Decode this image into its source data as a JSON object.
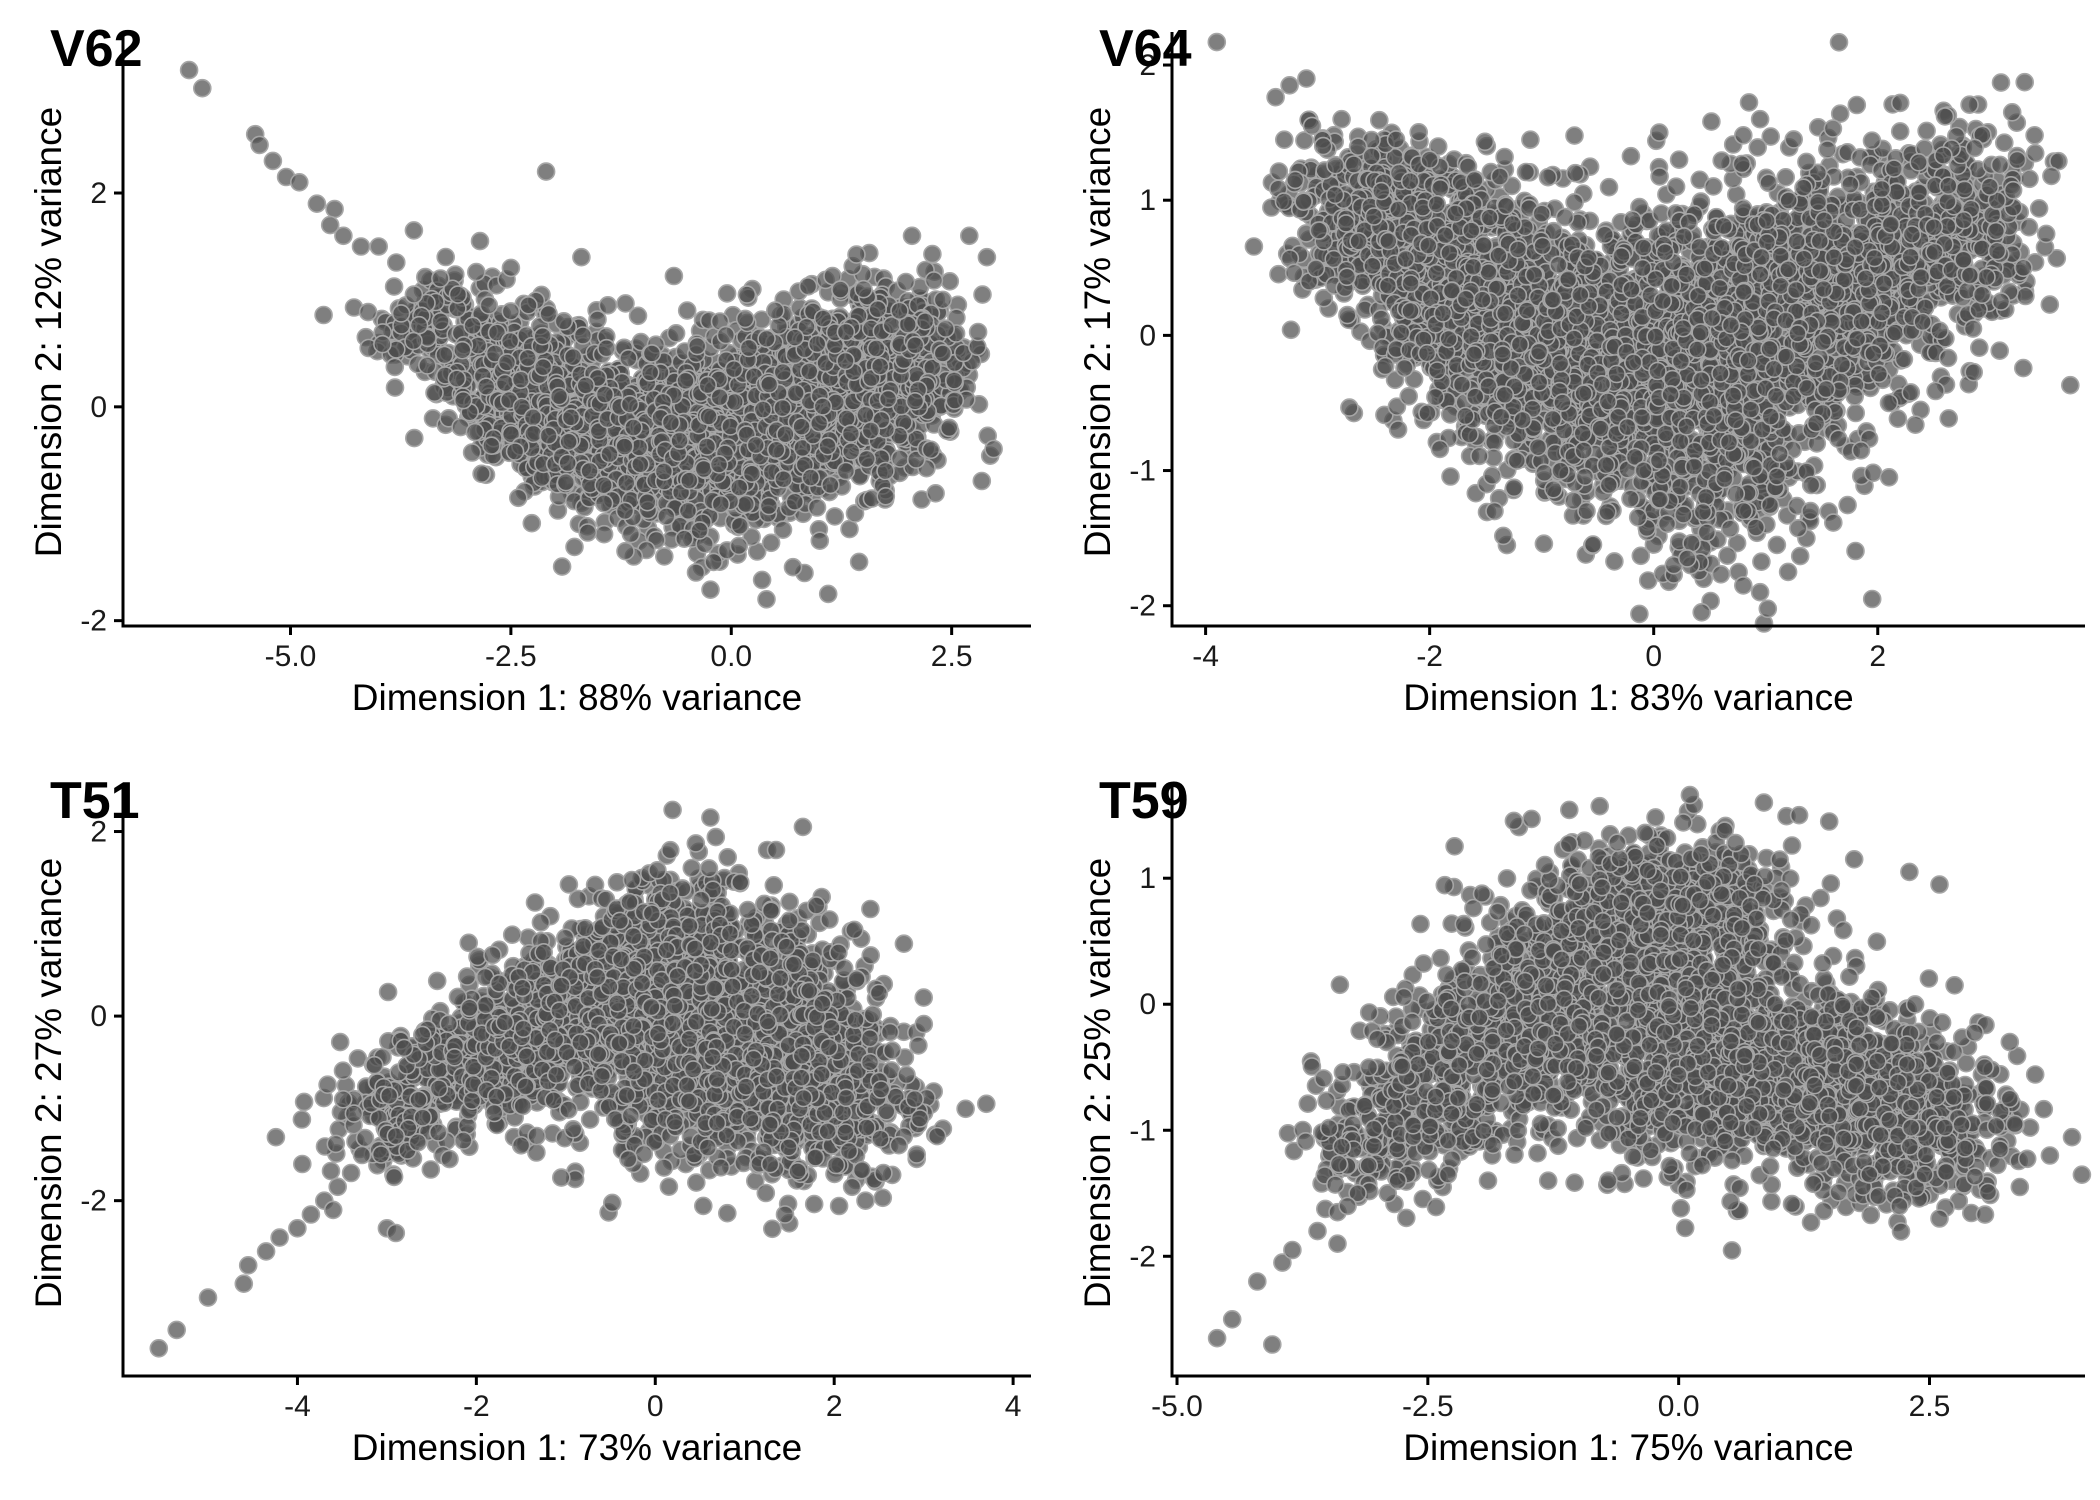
{
  "chart_data": [
    {
      "type": "scatter",
      "panel_label": "V62",
      "xlabel": "Dimension 1: 88% variance",
      "ylabel": "Dimension 2: 12% variance",
      "xlim": [
        -6.9,
        3.4
      ],
      "ylim": [
        -2.05,
        3.45
      ],
      "xticks": [
        -5.0,
        -2.5,
        0.0,
        2.5
      ],
      "xtick_labels": [
        "-5.0",
        "-2.5",
        "0.0",
        "2.5"
      ],
      "yticks": [
        -2,
        0,
        2
      ],
      "ytick_labels": [
        "-2",
        "0",
        "2"
      ],
      "grid": false,
      "marker_color": "#4d4d4d",
      "marker_edge": "#a6a6a6",
      "points": [
        [
          -6.55,
          3.52
        ],
        [
          -6.15,
          3.15
        ],
        [
          -6.0,
          2.98
        ],
        [
          -5.4,
          2.55
        ],
        [
          -5.35,
          2.45
        ],
        [
          -5.2,
          2.3
        ],
        [
          -5.05,
          2.15
        ],
        [
          -4.9,
          2.1
        ],
        [
          -4.7,
          1.9
        ],
        [
          -4.5,
          1.85
        ],
        [
          -4.55,
          1.7
        ],
        [
          -4.4,
          1.6
        ],
        [
          -4.2,
          1.5
        ],
        [
          -4.0,
          1.5
        ],
        [
          -3.6,
          1.65
        ],
        [
          -3.8,
          1.35
        ],
        [
          -2.85,
          1.55
        ],
        [
          -2.1,
          2.2
        ],
        [
          -1.7,
          1.4
        ],
        [
          -2.5,
          1.3
        ],
        [
          -3.3,
          1.2
        ],
        [
          -1.4,
          0.95
        ],
        [
          2.05,
          1.6
        ],
        [
          2.7,
          1.6
        ],
        [
          2.9,
          1.4
        ],
        [
          2.4,
          1.0
        ],
        [
          2.85,
          1.05
        ],
        [
          2.8,
          0.7
        ],
        [
          2.4,
          0.5
        ],
        [
          -0.5,
          0.9
        ],
        [
          0.5,
          0.9
        ],
        [
          1.5,
          1.1
        ],
        [
          -0.4,
          -1.55
        ],
        [
          0.4,
          -1.8
        ],
        [
          0.7,
          -1.5
        ],
        [
          1.1,
          -1.75
        ],
        [
          1.45,
          -1.45
        ],
        [
          -1.2,
          -1.35
        ],
        [
          -0.2,
          -1.45
        ],
        [
          1.3,
          -0.6
        ],
        [
          1.75,
          -0.6
        ],
        [
          -3.6,
          1.05
        ],
        [
          -3.1,
          1.05
        ],
        [
          -2.75,
          0.95
        ],
        [
          -2.3,
          0.95
        ],
        [
          -1.9,
          0.8
        ],
        [
          -0.9,
          0.5
        ],
        [
          0.2,
          0.55
        ],
        [
          1.3,
          0.7
        ],
        [
          2.2,
          0.8
        ]
      ],
      "clusters": [
        {
          "cx": -3.4,
          "cy": 0.75,
          "sx": 0.35,
          "sy": 0.3,
          "n": 140
        },
        {
          "cx": -2.3,
          "cy": 0.15,
          "sx": 0.45,
          "sy": 0.35,
          "n": 450
        },
        {
          "cx": -1.2,
          "cy": -0.3,
          "sx": 0.55,
          "sy": 0.4,
          "n": 650
        },
        {
          "cx": 0.0,
          "cy": -0.25,
          "sx": 0.6,
          "sy": 0.45,
          "n": 800
        },
        {
          "cx": 1.2,
          "cy": 0.15,
          "sx": 0.55,
          "sy": 0.45,
          "n": 700
        },
        {
          "cx": 2.0,
          "cy": 0.4,
          "sx": 0.35,
          "sy": 0.35,
          "n": 300
        }
      ]
    },
    {
      "type": "scatter",
      "panel_label": "V64",
      "xlabel": "Dimension 1: 83% variance",
      "ylabel": "Dimension 2: 17% variance",
      "xlim": [
        -4.3,
        3.85
      ],
      "ylim": [
        -2.15,
        2.2
      ],
      "xticks": [
        -4,
        -2,
        0,
        2
      ],
      "xtick_labels": [
        "-4",
        "-2",
        "0",
        "2"
      ],
      "yticks": [
        -2,
        -1,
        0,
        1,
        2
      ],
      "ytick_labels": [
        "-2",
        "-1",
        "0",
        "1",
        "2"
      ],
      "grid": false,
      "marker_color": "#4d4d4d",
      "marker_edge": "#a6a6a6",
      "points": [
        [
          -3.9,
          2.17
        ],
        [
          -3.25,
          1.85
        ],
        [
          -3.1,
          1.9
        ],
        [
          -3.05,
          1.55
        ],
        [
          -2.95,
          1.4
        ],
        [
          -3.2,
          1.15
        ],
        [
          0.05,
          1.5
        ],
        [
          0.8,
          1.48
        ],
        [
          1.25,
          1.45
        ],
        [
          1.6,
          1.53
        ],
        [
          2.2,
          1.72
        ],
        [
          2.6,
          1.62
        ],
        [
          3.1,
          1.87
        ],
        [
          3.2,
          1.65
        ],
        [
          3.4,
          1.48
        ],
        [
          3.55,
          1.18
        ],
        [
          3.35,
          0.8
        ],
        [
          3.3,
          0.5
        ],
        [
          3.1,
          0.25
        ],
        [
          2.5,
          0.8
        ],
        [
          2.4,
          0.1
        ],
        [
          2.1,
          -0.5
        ],
        [
          2.1,
          -1.05
        ],
        [
          1.85,
          -0.85
        ],
        [
          1.95,
          -1.95
        ],
        [
          1.2,
          -1.75
        ],
        [
          0.95,
          -1.9
        ],
        [
          0.8,
          -1.85
        ],
        [
          0.3,
          -1.65
        ],
        [
          -0.6,
          -1.3
        ],
        [
          -1.0,
          0.9
        ],
        [
          -1.6,
          1.15
        ],
        [
          -2.0,
          1.3
        ],
        [
          -2.3,
          1.45
        ],
        [
          -0.7,
          1.2
        ],
        [
          0.2,
          1.1
        ],
        [
          3.0,
          1.1
        ],
        [
          2.85,
          0.05
        ],
        [
          1.4,
          -1.3
        ],
        [
          1.1,
          -1.55
        ],
        [
          1.45,
          -0.65
        ]
      ],
      "clusters": [
        {
          "cx": -2.6,
          "cy": 0.9,
          "sx": 0.35,
          "sy": 0.3,
          "n": 300
        },
        {
          "cx": -1.9,
          "cy": 0.45,
          "sx": 0.45,
          "sy": 0.4,
          "n": 650
        },
        {
          "cx": -1.1,
          "cy": 0.0,
          "sx": 0.5,
          "sy": 0.45,
          "n": 800
        },
        {
          "cx": -0.2,
          "cy": -0.25,
          "sx": 0.55,
          "sy": 0.55,
          "n": 850
        },
        {
          "cx": 0.7,
          "cy": -0.7,
          "sx": 0.45,
          "sy": 0.5,
          "n": 450
        },
        {
          "cx": 1.0,
          "cy": 0.2,
          "sx": 0.55,
          "sy": 0.45,
          "n": 650
        },
        {
          "cx": 2.0,
          "cy": 0.55,
          "sx": 0.55,
          "sy": 0.45,
          "n": 550
        },
        {
          "cx": 2.8,
          "cy": 0.85,
          "sx": 0.35,
          "sy": 0.35,
          "n": 200
        }
      ]
    },
    {
      "type": "scatter",
      "panel_label": "T51",
      "xlabel": "Dimension 1: 73% variance",
      "ylabel": "Dimension 2: 27% variance",
      "xlim": [
        -5.95,
        4.2
      ],
      "ylim": [
        -3.9,
        2.45
      ],
      "xticks": [
        -4,
        -2,
        0,
        2,
        4
      ],
      "xtick_labels": [
        "-4",
        "-2",
        "0",
        "2",
        "4"
      ],
      "yticks": [
        -2,
        0,
        2
      ],
      "ytick_labels": [
        "-2",
        "0",
        "2"
      ],
      "grid": false,
      "marker_color": "#4d4d4d",
      "marker_edge": "#a6a6a6",
      "points": [
        [
          -5.55,
          -3.6
        ],
        [
          -5.35,
          -3.4
        ],
        [
          -5.0,
          -3.05
        ],
        [
          -4.6,
          -2.9
        ],
        [
          -4.55,
          -2.7
        ],
        [
          -4.35,
          -2.55
        ],
        [
          -4.2,
          -2.4
        ],
        [
          -4.0,
          -2.3
        ],
        [
          -3.85,
          -2.15
        ],
        [
          -3.7,
          -2.0
        ],
        [
          -3.55,
          -1.85
        ],
        [
          -3.4,
          -1.7
        ],
        [
          -3.6,
          -2.1
        ],
        [
          -3.0,
          -2.3
        ],
        [
          -2.9,
          -2.35
        ],
        [
          -2.3,
          -1.55
        ],
        [
          -1.5,
          -1.4
        ],
        [
          -1.05,
          -1.75
        ],
        [
          -0.3,
          -1.55
        ],
        [
          1.65,
          2.05
        ],
        [
          1.25,
          1.8
        ],
        [
          1.35,
          1.8
        ],
        [
          0.6,
          1.6
        ],
        [
          0.95,
          1.45
        ],
        [
          1.8,
          1.2
        ],
        [
          2.5,
          0.25
        ],
        [
          3.0,
          0.2
        ],
        [
          3.7,
          -0.95
        ],
        [
          3.15,
          -1.3
        ],
        [
          2.9,
          -0.9
        ],
        [
          1.45,
          -2.15
        ],
        [
          2.2,
          -1.85
        ],
        [
          2.35,
          -2.0
        ],
        [
          2.55,
          -1.7
        ],
        [
          2.4,
          -0.5
        ],
        [
          2.25,
          0.4
        ],
        [
          -2.9,
          -1.3
        ],
        [
          -2.6,
          -1.1
        ],
        [
          -1.8,
          -1.05
        ]
      ],
      "clusters": [
        {
          "cx": -3.0,
          "cy": -1.2,
          "sx": 0.35,
          "sy": 0.3,
          "n": 120
        },
        {
          "cx": -2.0,
          "cy": -0.55,
          "sx": 0.45,
          "sy": 0.35,
          "n": 350
        },
        {
          "cx": -1.0,
          "cy": 0.0,
          "sx": 0.5,
          "sy": 0.45,
          "n": 500
        },
        {
          "cx": 0.2,
          "cy": 0.55,
          "sx": 0.55,
          "sy": 0.5,
          "n": 700
        },
        {
          "cx": 0.5,
          "cy": -0.6,
          "sx": 0.65,
          "sy": 0.55,
          "n": 600
        },
        {
          "cx": 1.5,
          "cy": -0.2,
          "sx": 0.5,
          "sy": 0.6,
          "n": 500
        },
        {
          "cx": 1.8,
          "cy": -0.9,
          "sx": 0.55,
          "sy": 0.45,
          "n": 400
        }
      ]
    },
    {
      "type": "scatter",
      "panel_label": "T59",
      "xlabel": "Dimension 1: 75% variance",
      "ylabel": "Dimension 2: 25% variance",
      "xlim": [
        -5.05,
        4.05
      ],
      "ylim": [
        -2.95,
        1.7
      ],
      "xticks": [
        -5.0,
        -2.5,
        0.0,
        2.5
      ],
      "xtick_labels": [
        "-5.0",
        "-2.5",
        "0.0",
        "2.5"
      ],
      "yticks": [
        -2,
        -1,
        0,
        1
      ],
      "ytick_labels": [
        "-2",
        "-1",
        "0",
        "1"
      ],
      "grid": false,
      "marker_color": "#4d4d4d",
      "marker_edge": "#a6a6a6",
      "points": [
        [
          -4.6,
          -2.65
        ],
        [
          -4.45,
          -2.5
        ],
        [
          -4.2,
          -2.2
        ],
        [
          -4.05,
          -2.7
        ],
        [
          -3.95,
          -2.05
        ],
        [
          -3.85,
          -1.95
        ],
        [
          -3.6,
          -1.8
        ],
        [
          -3.4,
          -1.65
        ],
        [
          -3.2,
          -1.5
        ],
        [
          -2.9,
          -1.5
        ],
        [
          -2.8,
          -1.4
        ],
        [
          -2.3,
          -1.35
        ],
        [
          -1.9,
          -1.4
        ],
        [
          -1.3,
          -1.4
        ],
        [
          -0.7,
          -1.4
        ],
        [
          0.85,
          1.6
        ],
        [
          1.2,
          1.5
        ],
        [
          1.5,
          1.45
        ],
        [
          1.75,
          1.15
        ],
        [
          2.3,
          1.05
        ],
        [
          2.6,
          0.95
        ],
        [
          2.75,
          0.15
        ],
        [
          3.05,
          -0.5
        ],
        [
          3.3,
          -0.3
        ],
        [
          3.3,
          -0.75
        ],
        [
          3.35,
          -0.95
        ],
        [
          3.4,
          -1.45
        ],
        [
          3.7,
          -1.2
        ],
        [
          2.6,
          -1.7
        ],
        [
          2.2,
          -1.6
        ],
        [
          2.45,
          -1.35
        ],
        [
          1.9,
          -1.35
        ],
        [
          -3.4,
          -1.9
        ],
        [
          -3.3,
          -1.6
        ]
      ],
      "clusters": [
        {
          "cx": -3.1,
          "cy": -1.1,
          "sx": 0.35,
          "sy": 0.25,
          "n": 150
        },
        {
          "cx": -2.2,
          "cy": -0.55,
          "sx": 0.45,
          "sy": 0.35,
          "n": 350
        },
        {
          "cx": -1.2,
          "cy": 0.1,
          "sx": 0.55,
          "sy": 0.45,
          "n": 550
        },
        {
          "cx": 0.0,
          "cy": 0.7,
          "sx": 0.55,
          "sy": 0.35,
          "n": 650
        },
        {
          "cx": 0.0,
          "cy": -0.45,
          "sx": 0.7,
          "sy": 0.45,
          "n": 650
        },
        {
          "cx": 1.2,
          "cy": -0.55,
          "sx": 0.65,
          "sy": 0.4,
          "n": 600
        },
        {
          "cx": 2.3,
          "cy": -0.9,
          "sx": 0.55,
          "sy": 0.35,
          "n": 400
        }
      ]
    }
  ]
}
